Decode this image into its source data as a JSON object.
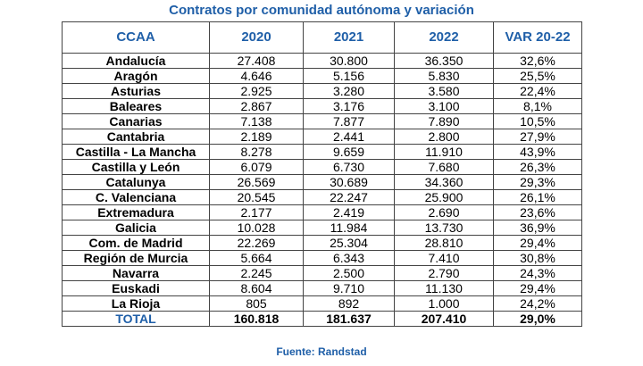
{
  "chart_data": {
    "type": "table",
    "title": "Contratos por comunidad autónoma y variación",
    "columns": [
      "CCAA",
      "2020",
      "2021",
      "2022",
      "VAR 20-22"
    ],
    "rows": [
      {
        "ccaa": "Andalucía",
        "y2020": "27.408",
        "y2021": "30.800",
        "y2022": "36.350",
        "var": "32,6%"
      },
      {
        "ccaa": "Aragón",
        "y2020": "4.646",
        "y2021": "5.156",
        "y2022": "5.830",
        "var": "25,5%"
      },
      {
        "ccaa": "Asturias",
        "y2020": "2.925",
        "y2021": "3.280",
        "y2022": "3.580",
        "var": "22,4%"
      },
      {
        "ccaa": "Baleares",
        "y2020": "2.867",
        "y2021": "3.176",
        "y2022": "3.100",
        "var": "8,1%"
      },
      {
        "ccaa": "Canarias",
        "y2020": "7.138",
        "y2021": "7.877",
        "y2022": "7.890",
        "var": "10,5%"
      },
      {
        "ccaa": "Cantabria",
        "y2020": "2.189",
        "y2021": "2.441",
        "y2022": "2.800",
        "var": "27,9%"
      },
      {
        "ccaa": "Castilla - La Mancha",
        "y2020": "8.278",
        "y2021": "9.659",
        "y2022": "11.910",
        "var": "43,9%"
      },
      {
        "ccaa": "Castilla y León",
        "y2020": "6.079",
        "y2021": "6.730",
        "y2022": "7.680",
        "var": "26,3%"
      },
      {
        "ccaa": "Catalunya",
        "y2020": "26.569",
        "y2021": "30.689",
        "y2022": "34.360",
        "var": "29,3%"
      },
      {
        "ccaa": "C. Valenciana",
        "y2020": "20.545",
        "y2021": "22.247",
        "y2022": "25.900",
        "var": "26,1%"
      },
      {
        "ccaa": "Extremadura",
        "y2020": "2.177",
        "y2021": "2.419",
        "y2022": "2.690",
        "var": "23,6%"
      },
      {
        "ccaa": "Galicia",
        "y2020": "10.028",
        "y2021": "11.984",
        "y2022": "13.730",
        "var": "36,9%"
      },
      {
        "ccaa": "Com. de Madrid",
        "y2020": "22.269",
        "y2021": "25.304",
        "y2022": "28.810",
        "var": "29,4%"
      },
      {
        "ccaa": "Región de Murcia",
        "y2020": "5.664",
        "y2021": "6.343",
        "y2022": "7.410",
        "var": "30,8%"
      },
      {
        "ccaa": "Navarra",
        "y2020": "2.245",
        "y2021": "2.500",
        "y2022": "2.790",
        "var": "24,3%"
      },
      {
        "ccaa": "Euskadi",
        "y2020": "8.604",
        "y2021": "9.710",
        "y2022": "11.130",
        "var": "29,4%"
      },
      {
        "ccaa": "La Rioja",
        "y2020": "805",
        "y2021": "892",
        "y2022": "1.000",
        "var": "24,2%"
      }
    ],
    "total": {
      "ccaa": "TOTAL",
      "y2020": "160.818",
      "y2021": "181.637",
      "y2022": "207.410",
      "var": "29,0%"
    },
    "source": "Fuente: Randstad"
  },
  "colors": {
    "accent": "#1f5fa8",
    "grid": "#444444",
    "text": "#000000"
  }
}
